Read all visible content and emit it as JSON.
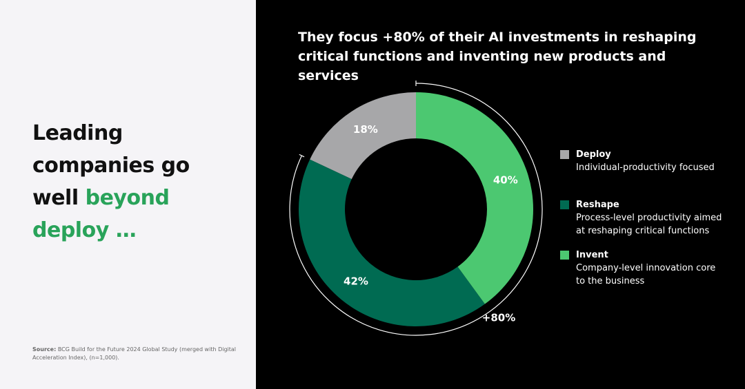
{
  "headline": {
    "text_1": "Leading companies go well",
    "text_2": "beyond deploy …"
  },
  "source": {
    "label": "Source:",
    "text": "BCG Build for the Future 2024 Global Study (merged with Digital Acceleration Index), (n=1,000)."
  },
  "chart_data": {
    "type": "donut",
    "title": "They focus +80% of their AI investments in reshaping critical functions and inventing new products and services",
    "categories": [
      "Deploy",
      "Reshape",
      "Invent"
    ],
    "descriptions": [
      "Individual-productivity focused",
      "Process-level productivity aimed at reshaping critical functions",
      "Company-level innovation core to the business"
    ],
    "values": [
      18,
      42,
      40
    ],
    "value_labels": [
      "18%",
      "42%",
      "40%"
    ],
    "colors": [
      "#a7a7a9",
      "#006b52",
      "#4cc871"
    ],
    "annotation": "+80%"
  }
}
